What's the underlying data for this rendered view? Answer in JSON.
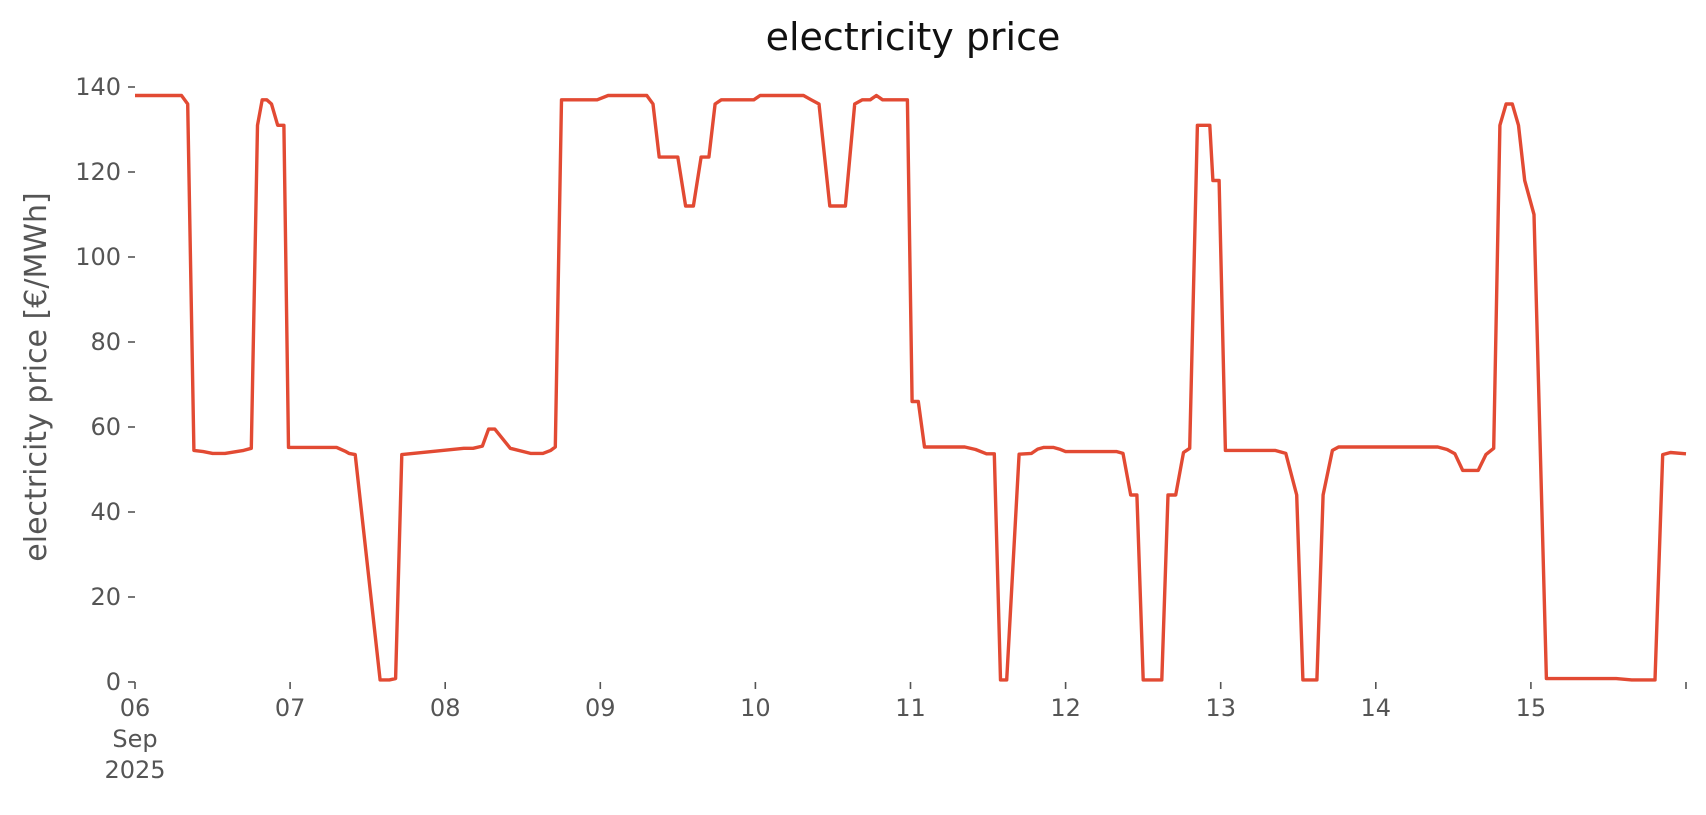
{
  "chart_data": {
    "type": "line",
    "title": "electricity price",
    "xlabel": "",
    "ylabel": "electricity price [€/MWh]",
    "x_unit": "day of September 2025",
    "xlim": [
      6,
      16
    ],
    "ylim": [
      0,
      140
    ],
    "grid": false,
    "legend": "none",
    "color": "#e24a33",
    "yticks": [
      0,
      20,
      40,
      60,
      80,
      100,
      120,
      140
    ],
    "xticks": [
      {
        "value": 6,
        "label": "06",
        "sub": [
          "Sep",
          "2025"
        ]
      },
      {
        "value": 7,
        "label": "07",
        "sub": []
      },
      {
        "value": 8,
        "label": "08",
        "sub": []
      },
      {
        "value": 9,
        "label": "09",
        "sub": []
      },
      {
        "value": 10,
        "label": "10",
        "sub": []
      },
      {
        "value": 11,
        "label": "11",
        "sub": []
      },
      {
        "value": 12,
        "label": "12",
        "sub": []
      },
      {
        "value": 13,
        "label": "13",
        "sub": []
      },
      {
        "value": 14,
        "label": "14",
        "sub": []
      },
      {
        "value": 15,
        "label": "15",
        "sub": []
      },
      {
        "value": 16,
        "label": "",
        "sub": []
      }
    ],
    "series": [
      {
        "x": [
          6.0,
          6.3,
          6.34,
          6.38,
          6.44,
          6.5,
          6.58,
          6.7,
          6.75,
          6.79,
          6.82,
          6.85,
          6.88,
          6.92,
          6.96,
          6.99,
          7.3,
          7.36,
          7.38,
          7.42,
          7.58,
          7.64,
          7.68,
          7.72,
          8.12,
          8.18,
          8.24,
          8.28,
          8.32,
          8.42,
          8.55,
          8.63,
          8.68,
          8.71,
          8.75,
          8.8,
          8.9,
          8.98,
          9.05,
          9.3,
          9.34,
          9.38,
          9.5,
          9.55,
          9.6,
          9.65,
          9.7,
          9.74,
          9.78,
          9.84,
          9.95,
          9.99,
          10.03,
          10.31,
          10.36,
          10.41,
          10.48,
          10.53,
          10.58,
          10.64,
          10.69,
          10.74,
          10.78,
          10.82,
          10.86,
          10.9,
          10.98,
          11.01,
          11.05,
          11.09,
          11.3,
          11.35,
          11.42,
          11.49,
          11.54,
          11.58,
          11.62,
          11.7,
          11.78,
          11.82,
          11.86,
          11.92,
          11.96,
          12.0,
          12.33,
          12.37,
          12.42,
          12.46,
          12.5,
          12.54,
          12.58,
          12.62,
          12.66,
          12.71,
          12.76,
          12.8,
          12.85,
          12.89,
          12.93,
          12.95,
          12.99,
          13.03,
          13.35,
          13.42,
          13.49,
          13.53,
          13.58,
          13.62,
          13.66,
          13.72,
          13.76,
          14.35,
          14.4,
          14.46,
          14.51,
          14.56,
          14.61,
          14.66,
          14.71,
          14.76,
          14.8,
          14.84,
          14.88,
          14.92,
          14.96,
          15.02,
          15.1,
          15.5,
          15.55,
          15.65,
          15.7,
          15.75,
          15.8,
          15.85,
          15.9,
          16.0
        ],
        "values": [
          138,
          138,
          136,
          54.5,
          54.2,
          53.8,
          53.8,
          54.5,
          55,
          131,
          137,
          137,
          136,
          131,
          131,
          55.2,
          55.2,
          54.2,
          53.8,
          53.5,
          0.5,
          0.5,
          0.8,
          53.5,
          55,
          55,
          55.5,
          59.5,
          59.5,
          55,
          53.8,
          53.8,
          54.5,
          55.3,
          137,
          137,
          137,
          137,
          138,
          138,
          136,
          123.5,
          123.5,
          112,
          112,
          123.5,
          123.5,
          136,
          137,
          137,
          137,
          137,
          138,
          138,
          137,
          136,
          112,
          112,
          112,
          136,
          137,
          137,
          138,
          137,
          137,
          137,
          137,
          66,
          66,
          55.3,
          55.3,
          55.3,
          54.7,
          53.7,
          53.7,
          0.5,
          0.5,
          53.6,
          53.8,
          54.8,
          55.2,
          55.2,
          54.8,
          54.2,
          54.2,
          53.8,
          44,
          44,
          0.5,
          0.5,
          0.5,
          0.5,
          44,
          44,
          54,
          55,
          131,
          131,
          131,
          118,
          118,
          54.5,
          54.5,
          53.8,
          44,
          0.5,
          0.5,
          0.5,
          44,
          54.5,
          55.3,
          55.3,
          55.3,
          54.7,
          53.7,
          49.8,
          49.8,
          49.8,
          53.5,
          55,
          131,
          136,
          136,
          131,
          118,
          110,
          0.8,
          0.8,
          0.8,
          0.5,
          0.5,
          0.5,
          0.5,
          53.5,
          54,
          53.7
        ]
      }
    ]
  }
}
